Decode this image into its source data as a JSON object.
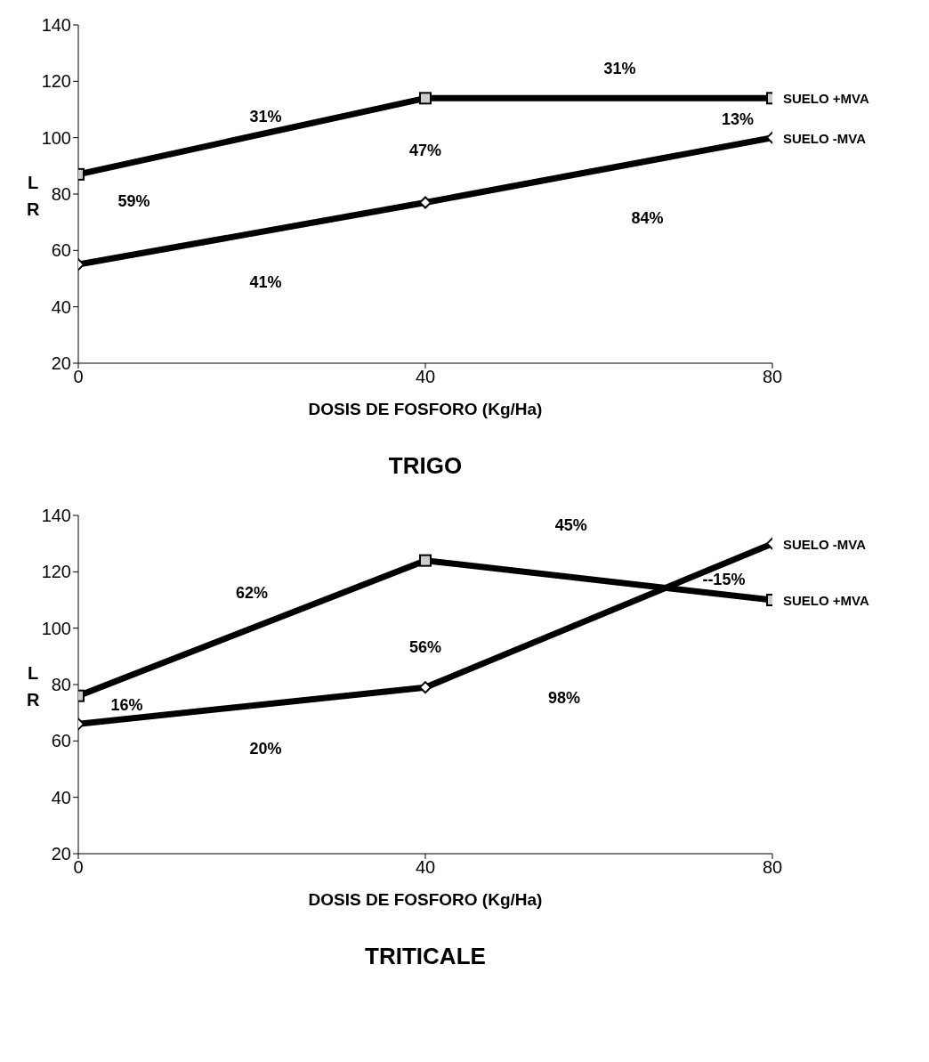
{
  "chart_data": [
    {
      "type": "line",
      "title": "TRIGO",
      "xlabel": "DOSIS DE FOSFORO (Kg/Ha)",
      "ylabel": "L\nR",
      "x": [
        0,
        40,
        80
      ],
      "series": [
        {
          "name": "SUELO +MVA",
          "color": "#000000",
          "marker": "square",
          "values": [
            87,
            114,
            114
          ]
        },
        {
          "name": "SUELO -MVA",
          "color": "#000000",
          "marker": "diamond",
          "values": [
            55,
            77,
            100
          ]
        }
      ],
      "xlim": [
        0,
        80
      ],
      "xticks": [
        0,
        40,
        80
      ],
      "ylim": [
        20,
        140
      ],
      "yticks": [
        20,
        40,
        60,
        80,
        100,
        120,
        140
      ],
      "grid": false,
      "legend": false,
      "line_style": "solid",
      "annotations": [
        "31%",
        "31%",
        "47%",
        "13%",
        "59%",
        "41%",
        "84%"
      ]
    },
    {
      "type": "line",
      "title": "TRITICALE",
      "xlabel": "DOSIS DE FOSFORO (Kg/Ha)",
      "ylabel": "L\nR",
      "x": [
        0,
        40,
        80
      ],
      "series": [
        {
          "name": "SUELO +MVA",
          "color": "#000000",
          "marker": "square",
          "values": [
            76,
            124,
            110
          ]
        },
        {
          "name": "SUELO -MVA",
          "color": "#000000",
          "marker": "diamond",
          "values": [
            66,
            79,
            130
          ]
        }
      ],
      "xlim": [
        0,
        80
      ],
      "xticks": [
        0,
        40,
        80
      ],
      "ylim": [
        20,
        140
      ],
      "yticks": [
        20,
        40,
        60,
        80,
        100,
        120,
        140
      ],
      "grid": false,
      "legend": false,
      "line_style": "solid",
      "annotations": [
        "62%",
        "45%",
        "56%",
        "16%",
        "20%",
        "98%",
        "--15%"
      ]
    }
  ]
}
